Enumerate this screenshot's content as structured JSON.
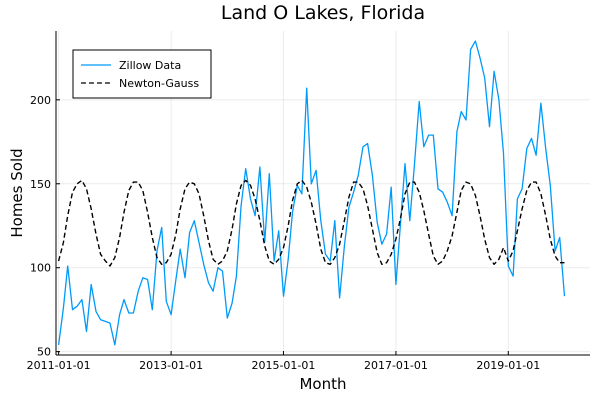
{
  "chart_data": {
    "type": "line",
    "title": "Land O Lakes, Florida",
    "xlabel": "Month",
    "ylabel": "Homes Sold",
    "x_axis": "date",
    "xlim": [
      "2010-12-15",
      "2020-06-15"
    ],
    "ylim": [
      48,
      241
    ],
    "x_ticks": [
      "2011-01-01",
      "2013-01-01",
      "2015-01-01",
      "2017-01-01",
      "2019-01-01"
    ],
    "y_ticks": [
      50,
      100,
      150,
      200
    ],
    "grid": true,
    "legend": "top-left",
    "series": [
      {
        "name": "Zillow Data",
        "color": "#009AF9",
        "style": "solid",
        "points": [
          [
            "2011-01-01",
            54
          ],
          [
            "2011-02-01",
            76
          ],
          [
            "2011-03-01",
            101
          ],
          [
            "2011-04-01",
            75
          ],
          [
            "2011-05-01",
            77
          ],
          [
            "2011-06-01",
            81
          ],
          [
            "2011-07-01",
            62
          ],
          [
            "2011-08-01",
            90
          ],
          [
            "2011-09-01",
            74
          ],
          [
            "2011-10-01",
            69
          ],
          [
            "2011-11-01",
            68
          ],
          [
            "2011-12-01",
            67
          ],
          [
            "2012-01-01",
            54
          ],
          [
            "2012-02-01",
            72
          ],
          [
            "2012-03-01",
            81
          ],
          [
            "2012-04-01",
            73
          ],
          [
            "2012-05-01",
            73
          ],
          [
            "2012-06-01",
            86
          ],
          [
            "2012-07-01",
            94
          ],
          [
            "2012-08-01",
            93
          ],
          [
            "2012-09-01",
            75
          ],
          [
            "2012-10-01",
            110
          ],
          [
            "2012-11-01",
            124
          ],
          [
            "2012-12-01",
            80
          ],
          [
            "2013-01-01",
            72
          ],
          [
            "2013-02-01",
            93
          ],
          [
            "2013-03-01",
            111
          ],
          [
            "2013-04-01",
            94
          ],
          [
            "2013-05-01",
            121
          ],
          [
            "2013-06-01",
            128
          ],
          [
            "2013-07-01",
            115
          ],
          [
            "2013-08-01",
            102
          ],
          [
            "2013-09-01",
            91
          ],
          [
            "2013-10-01",
            86
          ],
          [
            "2013-11-01",
            100
          ],
          [
            "2013-12-01",
            98
          ],
          [
            "2014-01-01",
            70
          ],
          [
            "2014-02-01",
            79
          ],
          [
            "2014-03-01",
            95
          ],
          [
            "2014-04-01",
            137
          ],
          [
            "2014-05-01",
            159
          ],
          [
            "2014-06-01",
            141
          ],
          [
            "2014-07-01",
            131
          ],
          [
            "2014-08-01",
            160
          ],
          [
            "2014-09-01",
            115
          ],
          [
            "2014-10-01",
            156
          ],
          [
            "2014-11-01",
            104
          ],
          [
            "2014-12-01",
            122
          ],
          [
            "2015-01-01",
            83
          ],
          [
            "2015-02-01",
            105
          ],
          [
            "2015-03-01",
            133
          ],
          [
            "2015-04-01",
            149
          ],
          [
            "2015-05-01",
            144
          ],
          [
            "2015-06-01",
            207
          ],
          [
            "2015-07-01",
            150
          ],
          [
            "2015-08-01",
            158
          ],
          [
            "2015-09-01",
            128
          ],
          [
            "2015-10-01",
            108
          ],
          [
            "2015-11-01",
            104
          ],
          [
            "2015-12-01",
            128
          ],
          [
            "2016-01-01",
            82
          ],
          [
            "2016-02-01",
            113
          ],
          [
            "2016-03-01",
            136
          ],
          [
            "2016-04-01",
            145
          ],
          [
            "2016-05-01",
            155
          ],
          [
            "2016-06-01",
            172
          ],
          [
            "2016-07-01",
            174
          ],
          [
            "2016-08-01",
            155
          ],
          [
            "2016-09-01",
            127
          ],
          [
            "2016-10-01",
            114
          ],
          [
            "2016-11-01",
            120
          ],
          [
            "2016-12-01",
            148
          ],
          [
            "2017-01-01",
            90
          ],
          [
            "2017-02-01",
            128
          ],
          [
            "2017-03-01",
            162
          ],
          [
            "2017-04-01",
            128
          ],
          [
            "2017-05-01",
            161
          ],
          [
            "2017-06-01",
            199
          ],
          [
            "2017-07-01",
            172
          ],
          [
            "2017-08-01",
            179
          ],
          [
            "2017-09-01",
            179
          ],
          [
            "2017-10-01",
            147
          ],
          [
            "2017-11-01",
            145
          ],
          [
            "2017-12-01",
            139
          ],
          [
            "2018-01-01",
            131
          ],
          [
            "2018-02-01",
            181
          ],
          [
            "2018-03-01",
            193
          ],
          [
            "2018-04-01",
            188
          ],
          [
            "2018-05-01",
            230
          ],
          [
            "2018-06-01",
            235
          ],
          [
            "2018-07-01",
            225
          ],
          [
            "2018-08-01",
            213
          ],
          [
            "2018-09-01",
            184
          ],
          [
            "2018-10-01",
            217
          ],
          [
            "2018-11-01",
            200
          ],
          [
            "2018-12-01",
            168
          ],
          [
            "2019-01-01",
            101
          ],
          [
            "2019-02-01",
            95
          ],
          [
            "2019-03-01",
            141
          ],
          [
            "2019-04-01",
            147
          ],
          [
            "2019-05-01",
            171
          ],
          [
            "2019-06-01",
            177
          ],
          [
            "2019-07-01",
            167
          ],
          [
            "2019-08-01",
            198
          ],
          [
            "2019-09-01",
            171
          ],
          [
            "2019-10-01",
            149
          ],
          [
            "2019-11-01",
            110
          ],
          [
            "2019-12-01",
            118
          ],
          [
            "2020-01-01",
            83
          ]
        ]
      },
      {
        "name": "Newton-Gauss",
        "color": "#000000",
        "style": "dashed",
        "points": [
          [
            "2011-01-01",
            104
          ],
          [
            "2011-02-01",
            115
          ],
          [
            "2011-03-01",
            131
          ],
          [
            "2011-04-01",
            145
          ],
          [
            "2011-05-01",
            150
          ],
          [
            "2011-06-01",
            152
          ],
          [
            "2011-07-01",
            147
          ],
          [
            "2011-08-01",
            135
          ],
          [
            "2011-09-01",
            120
          ],
          [
            "2011-10-01",
            108
          ],
          [
            "2011-11-01",
            104
          ],
          [
            "2011-12-01",
            101
          ],
          [
            "2012-01-01",
            106
          ],
          [
            "2012-02-01",
            118
          ],
          [
            "2012-03-01",
            133
          ],
          [
            "2012-04-01",
            146
          ],
          [
            "2012-05-01",
            151
          ],
          [
            "2012-06-01",
            151
          ],
          [
            "2012-07-01",
            146
          ],
          [
            "2012-08-01",
            133
          ],
          [
            "2012-09-01",
            118
          ],
          [
            "2012-10-01",
            106
          ],
          [
            "2012-11-01",
            102
          ],
          [
            "2012-12-01",
            103
          ],
          [
            "2013-01-01",
            108
          ],
          [
            "2013-02-01",
            120
          ],
          [
            "2013-03-01",
            135
          ],
          [
            "2013-04-01",
            147
          ],
          [
            "2013-05-01",
            151
          ],
          [
            "2013-06-01",
            150
          ],
          [
            "2013-07-01",
            144
          ],
          [
            "2013-08-01",
            131
          ],
          [
            "2013-09-01",
            116
          ],
          [
            "2013-10-01",
            105
          ],
          [
            "2013-11-01",
            102
          ],
          [
            "2013-12-01",
            104
          ],
          [
            "2014-01-01",
            110
          ],
          [
            "2014-02-01",
            123
          ],
          [
            "2014-03-01",
            138
          ],
          [
            "2014-04-01",
            149
          ],
          [
            "2014-05-01",
            152
          ],
          [
            "2014-06-01",
            149
          ],
          [
            "2014-07-01",
            141
          ],
          [
            "2014-08-01",
            128
          ],
          [
            "2014-09-01",
            113
          ],
          [
            "2014-10-01",
            104
          ],
          [
            "2014-11-01",
            102
          ],
          [
            "2014-12-01",
            105
          ],
          [
            "2015-01-01",
            112
          ],
          [
            "2015-02-01",
            125
          ],
          [
            "2015-03-01",
            140
          ],
          [
            "2015-04-01",
            150
          ],
          [
            "2015-05-01",
            152
          ],
          [
            "2015-06-01",
            148
          ],
          [
            "2015-07-01",
            139
          ],
          [
            "2015-08-01",
            126
          ],
          [
            "2015-09-01",
            111
          ],
          [
            "2015-10-01",
            103
          ],
          [
            "2015-11-01",
            102
          ],
          [
            "2015-12-01",
            106
          ],
          [
            "2016-01-01",
            114
          ],
          [
            "2016-02-01",
            128
          ],
          [
            "2016-03-01",
            142
          ],
          [
            "2016-04-01",
            151
          ],
          [
            "2016-05-01",
            151
          ],
          [
            "2016-06-01",
            147
          ],
          [
            "2016-07-01",
            137
          ],
          [
            "2016-08-01",
            123
          ],
          [
            "2016-09-01",
            109
          ],
          [
            "2016-10-01",
            102
          ],
          [
            "2016-11-01",
            103
          ],
          [
            "2016-12-01",
            108
          ],
          [
            "2017-01-01",
            117
          ],
          [
            "2017-02-01",
            130
          ],
          [
            "2017-03-01",
            144
          ],
          [
            "2017-04-01",
            151
          ],
          [
            "2017-05-01",
            151
          ],
          [
            "2017-06-01",
            145
          ],
          [
            "2017-07-01",
            134
          ],
          [
            "2017-08-01",
            120
          ],
          [
            "2017-09-01",
            107
          ],
          [
            "2017-10-01",
            102
          ],
          [
            "2017-11-01",
            104
          ],
          [
            "2017-12-01",
            110
          ],
          [
            "2018-01-01",
            119
          ],
          [
            "2018-02-01",
            133
          ],
          [
            "2018-03-01",
            146
          ],
          [
            "2018-04-01",
            151
          ],
          [
            "2018-05-01",
            150
          ],
          [
            "2018-06-01",
            143
          ],
          [
            "2018-07-01",
            131
          ],
          [
            "2018-08-01",
            117
          ],
          [
            "2018-09-01",
            106
          ],
          [
            "2018-10-01",
            102
          ],
          [
            "2018-11-01",
            105
          ],
          [
            "2018-12-01",
            112
          ],
          [
            "2019-01-01",
            104
          ],
          [
            "2019-02-01",
            110
          ],
          [
            "2019-03-01",
            122
          ],
          [
            "2019-04-01",
            135
          ],
          [
            "2019-05-01",
            146
          ],
          [
            "2019-06-01",
            151
          ],
          [
            "2019-07-01",
            151
          ],
          [
            "2019-08-01",
            144
          ],
          [
            "2019-09-01",
            131
          ],
          [
            "2019-10-01",
            117
          ],
          [
            "2019-11-01",
            107
          ],
          [
            "2019-12-01",
            103
          ],
          [
            "2020-01-01",
            103
          ]
        ]
      }
    ]
  }
}
